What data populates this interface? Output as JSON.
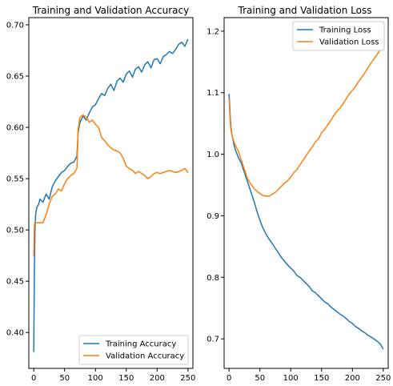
{
  "chart_data": [
    {
      "type": "line",
      "title": "Training and Validation Accuracy",
      "xlabel": "",
      "ylabel": "",
      "xlim": [
        -8,
        258
      ],
      "ylim": [
        0.365,
        0.707
      ],
      "xticks": [
        0,
        50,
        100,
        150,
        200,
        250
      ],
      "yticks": [
        0.4,
        0.45,
        0.5,
        0.55,
        0.6,
        0.65,
        0.7
      ],
      "ytick_format": 2,
      "grid": false,
      "legend_position": "lower-right",
      "series": [
        {
          "name": "Training Accuracy",
          "color": "#1f77b4",
          "x": [
            0,
            1,
            2,
            3,
            5,
            8,
            10,
            15,
            20,
            25,
            30,
            35,
            40,
            45,
            50,
            55,
            60,
            65,
            70,
            72,
            75,
            80,
            85,
            90,
            95,
            100,
            105,
            110,
            115,
            120,
            125,
            130,
            135,
            140,
            145,
            150,
            155,
            160,
            165,
            170,
            175,
            180,
            185,
            190,
            195,
            200,
            205,
            210,
            215,
            220,
            225,
            230,
            235,
            240,
            245,
            250
          ],
          "y": [
            0.381,
            0.46,
            0.5,
            0.515,
            0.522,
            0.525,
            0.53,
            0.527,
            0.535,
            0.53,
            0.542,
            0.548,
            0.552,
            0.556,
            0.558,
            0.562,
            0.565,
            0.566,
            0.572,
            0.595,
            0.605,
            0.611,
            0.607,
            0.614,
            0.62,
            0.622,
            0.628,
            0.633,
            0.631,
            0.638,
            0.642,
            0.636,
            0.645,
            0.648,
            0.644,
            0.652,
            0.655,
            0.649,
            0.657,
            0.659,
            0.654,
            0.661,
            0.664,
            0.658,
            0.666,
            0.667,
            0.662,
            0.669,
            0.671,
            0.674,
            0.672,
            0.676,
            0.681,
            0.683,
            0.679,
            0.686
          ]
        },
        {
          "name": "Validation Accuracy",
          "color": "#ff7f0e",
          "x": [
            0,
            1,
            2,
            3,
            5,
            8,
            10,
            15,
            20,
            25,
            30,
            35,
            40,
            45,
            50,
            55,
            60,
            65,
            70,
            72,
            75,
            80,
            85,
            90,
            95,
            100,
            105,
            110,
            115,
            120,
            125,
            130,
            135,
            140,
            145,
            150,
            155,
            160,
            165,
            170,
            175,
            180,
            185,
            190,
            195,
            200,
            205,
            210,
            215,
            220,
            225,
            230,
            235,
            240,
            245,
            250
          ],
          "y": [
            0.474,
            0.505,
            0.507,
            0.507,
            0.507,
            0.507,
            0.507,
            0.507,
            0.515,
            0.525,
            0.533,
            0.535,
            0.54,
            0.538,
            0.545,
            0.55,
            0.553,
            0.555,
            0.56,
            0.598,
            0.61,
            0.612,
            0.61,
            0.605,
            0.607,
            0.603,
            0.6,
            0.59,
            0.587,
            0.583,
            0.58,
            0.578,
            0.577,
            0.575,
            0.57,
            0.562,
            0.56,
            0.558,
            0.555,
            0.557,
            0.555,
            0.553,
            0.55,
            0.552,
            0.555,
            0.556,
            0.555,
            0.556,
            0.557,
            0.558,
            0.557,
            0.556,
            0.557,
            0.558,
            0.56,
            0.556
          ]
        }
      ]
    },
    {
      "type": "line",
      "title": "Training and Validation Loss",
      "xlabel": "",
      "ylabel": "",
      "xlim": [
        -8,
        258
      ],
      "ylim": [
        0.652,
        1.222
      ],
      "xticks": [
        0,
        50,
        100,
        150,
        200,
        250
      ],
      "yticks": [
        0.7,
        0.8,
        0.9,
        1.0,
        1.1,
        1.2
      ],
      "ytick_format": 1,
      "grid": false,
      "legend_position": "upper-right",
      "series": [
        {
          "name": "Training Loss",
          "color": "#1f77b4",
          "x": [
            0,
            1,
            2,
            3,
            5,
            8,
            10,
            15,
            20,
            25,
            30,
            35,
            40,
            45,
            50,
            55,
            60,
            65,
            70,
            75,
            80,
            85,
            90,
            95,
            100,
            105,
            110,
            115,
            120,
            125,
            130,
            135,
            140,
            145,
            150,
            155,
            160,
            165,
            170,
            175,
            180,
            185,
            190,
            195,
            200,
            205,
            210,
            215,
            220,
            225,
            230,
            235,
            240,
            245,
            250
          ],
          "y": [
            1.098,
            1.08,
            1.06,
            1.045,
            1.03,
            1.015,
            1.008,
            0.995,
            0.985,
            0.97,
            0.955,
            0.94,
            0.925,
            0.908,
            0.893,
            0.88,
            0.87,
            0.862,
            0.855,
            0.847,
            0.84,
            0.832,
            0.826,
            0.82,
            0.815,
            0.81,
            0.803,
            0.8,
            0.795,
            0.79,
            0.785,
            0.778,
            0.775,
            0.77,
            0.765,
            0.76,
            0.757,
            0.752,
            0.748,
            0.744,
            0.74,
            0.737,
            0.733,
            0.728,
            0.725,
            0.72,
            0.717,
            0.713,
            0.71,
            0.706,
            0.703,
            0.7,
            0.696,
            0.692,
            0.683
          ]
        },
        {
          "name": "Validation Loss",
          "color": "#ff7f0e",
          "x": [
            0,
            1,
            2,
            3,
            5,
            8,
            10,
            15,
            20,
            25,
            30,
            35,
            40,
            45,
            50,
            55,
            60,
            65,
            70,
            75,
            80,
            85,
            90,
            95,
            100,
            105,
            110,
            115,
            120,
            125,
            130,
            135,
            140,
            145,
            150,
            155,
            160,
            165,
            170,
            175,
            180,
            185,
            190,
            195,
            200,
            205,
            210,
            215,
            220,
            225,
            230,
            235,
            240,
            245,
            250
          ],
          "y": [
            1.09,
            1.07,
            1.052,
            1.04,
            1.03,
            1.02,
            1.015,
            1.005,
            0.99,
            0.975,
            0.96,
            0.952,
            0.945,
            0.94,
            0.936,
            0.933,
            0.932,
            0.932,
            0.935,
            0.938,
            0.943,
            0.948,
            0.953,
            0.957,
            0.963,
            0.97,
            0.975,
            0.983,
            0.99,
            0.998,
            1.005,
            1.012,
            1.02,
            1.025,
            1.035,
            1.04,
            1.048,
            1.055,
            1.063,
            1.07,
            1.075,
            1.082,
            1.09,
            1.098,
            1.104,
            1.11,
            1.118,
            1.125,
            1.132,
            1.14,
            1.148,
            1.155,
            1.162,
            1.17,
            1.176
          ]
        }
      ]
    }
  ]
}
